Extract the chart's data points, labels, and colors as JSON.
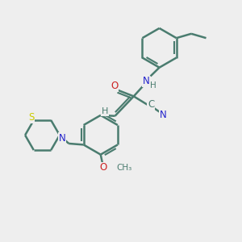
{
  "background_color": "#eeeeee",
  "bond_color": "#4a7c6f",
  "bond_width": 1.8,
  "N_color": "#2222cc",
  "O_color": "#cc2222",
  "S_color": "#cccc00",
  "label_fontsize": 8.5,
  "figsize": [
    3.0,
    3.0
  ],
  "dpi": 100,
  "xlim": [
    0,
    10
  ],
  "ylim": [
    0,
    10
  ]
}
